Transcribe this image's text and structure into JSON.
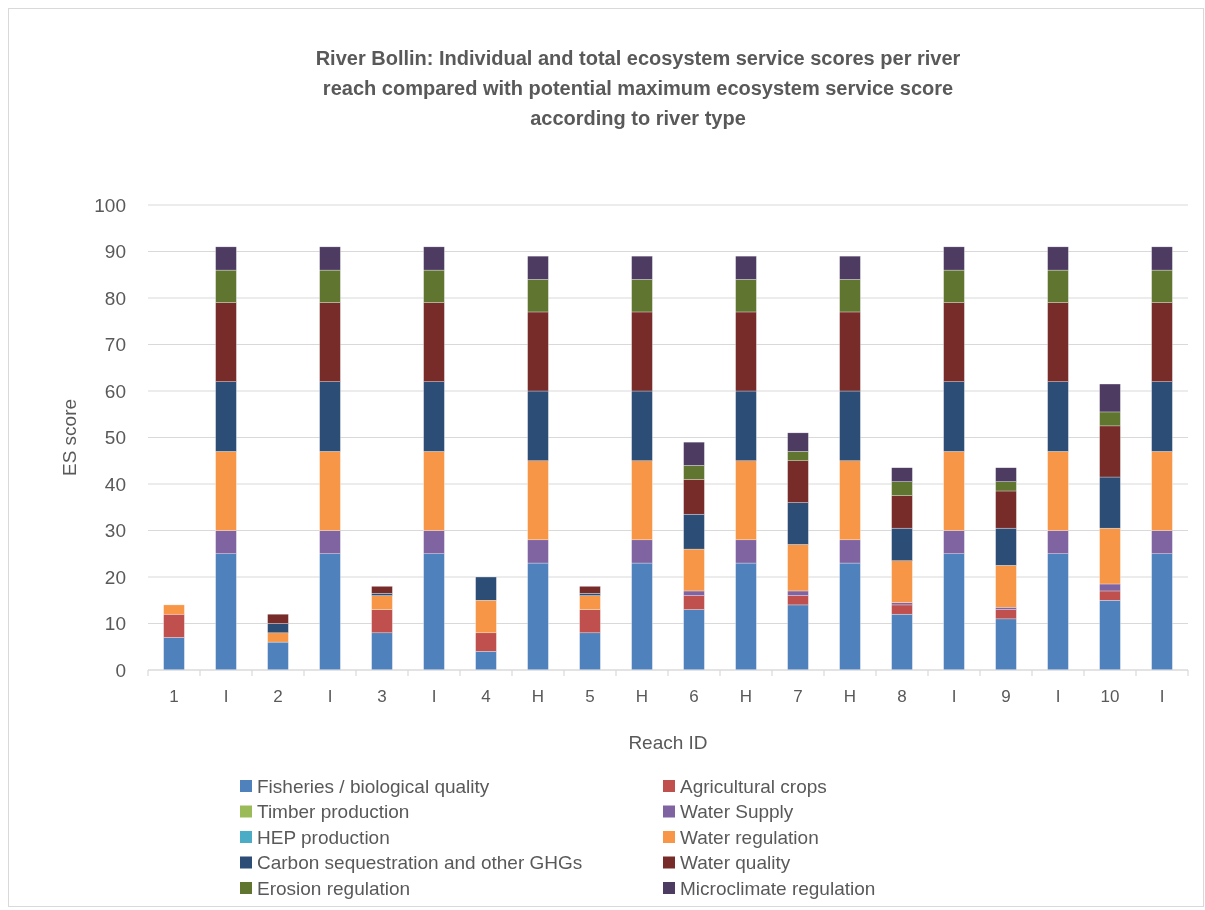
{
  "chart_data": {
    "type": "bar",
    "stacked": true,
    "title": "River Bollin: Individual and total ecosystem service scores per river reach compared with potential maximum ecosystem service score according to river type",
    "xlabel": "Reach ID",
    "ylabel": "ES score",
    "categories": [
      "1",
      "I",
      "2",
      "I",
      "3",
      "I",
      "4",
      "H",
      "5",
      "H",
      "6",
      "H",
      "7",
      "H",
      "8",
      "I",
      "9",
      "I",
      "10",
      "I"
    ],
    "ylim": [
      0,
      100
    ],
    "yticks": [
      0,
      10,
      20,
      30,
      40,
      50,
      60,
      70,
      80,
      90,
      100
    ],
    "grid": "y",
    "legend": "bottom",
    "series": [
      {
        "name": "Fisheries / biological quality",
        "color": "#4f81bd",
        "values": [
          7,
          25,
          6,
          25,
          8,
          25,
          4,
          23,
          8,
          23,
          13,
          23,
          14,
          23,
          12,
          25,
          11,
          25,
          15,
          25
        ]
      },
      {
        "name": "Agricultural crops",
        "color": "#c0504d",
        "values": [
          5,
          0,
          0,
          0,
          5,
          0,
          4,
          0,
          5,
          0,
          3,
          0,
          2,
          0,
          2,
          0,
          2,
          0,
          2,
          0
        ]
      },
      {
        "name": "Timber production",
        "color": "#9bbb59",
        "values": [
          0,
          0,
          0,
          0,
          0,
          0,
          0,
          0,
          0,
          0,
          0,
          0,
          0,
          0,
          0,
          0,
          0,
          0,
          0,
          0
        ]
      },
      {
        "name": "Water Supply",
        "color": "#8064a2",
        "values": [
          0,
          5,
          0,
          5,
          0,
          5,
          0,
          5,
          0,
          5,
          1,
          5,
          1,
          5,
          0.5,
          5,
          0.5,
          5,
          1.5,
          5
        ]
      },
      {
        "name": "HEP production",
        "color": "#4bacc6",
        "values": [
          0,
          0,
          0,
          0,
          0,
          0,
          0,
          0,
          0,
          0,
          0,
          0,
          0,
          0,
          0,
          0,
          0,
          0,
          0,
          0
        ]
      },
      {
        "name": "Water regulation",
        "color": "#f79646",
        "values": [
          2,
          17,
          2,
          17,
          3,
          17,
          7,
          17,
          3,
          17,
          9,
          17,
          10,
          17,
          9,
          17,
          9,
          17,
          12,
          17
        ]
      },
      {
        "name": "Carbon sequestration and other GHGs",
        "color": "#2c4d75",
        "values": [
          0,
          15,
          2,
          15,
          0.5,
          15,
          5,
          15,
          0.5,
          15,
          7.5,
          15,
          9,
          15,
          7,
          15,
          8,
          15,
          11,
          15
        ]
      },
      {
        "name": "Water quality",
        "color": "#772c2a",
        "values": [
          0,
          17,
          2,
          17,
          1.5,
          17,
          0,
          17,
          1.5,
          17,
          7.5,
          17,
          9,
          17,
          7,
          17,
          8,
          17,
          11,
          17
        ]
      },
      {
        "name": "Erosion regulation",
        "color": "#5f7530",
        "values": [
          0,
          7,
          0,
          7,
          0,
          7,
          0,
          7,
          0,
          7,
          3,
          7,
          2,
          7,
          3,
          7,
          2,
          7,
          3,
          7
        ]
      },
      {
        "name": "Microclimate regulation",
        "color": "#4d3b62",
        "values": [
          0,
          5,
          0,
          5,
          0,
          5,
          0,
          5,
          0,
          5,
          5,
          5,
          4,
          5,
          3,
          5,
          3,
          5,
          6,
          5
        ]
      }
    ]
  }
}
